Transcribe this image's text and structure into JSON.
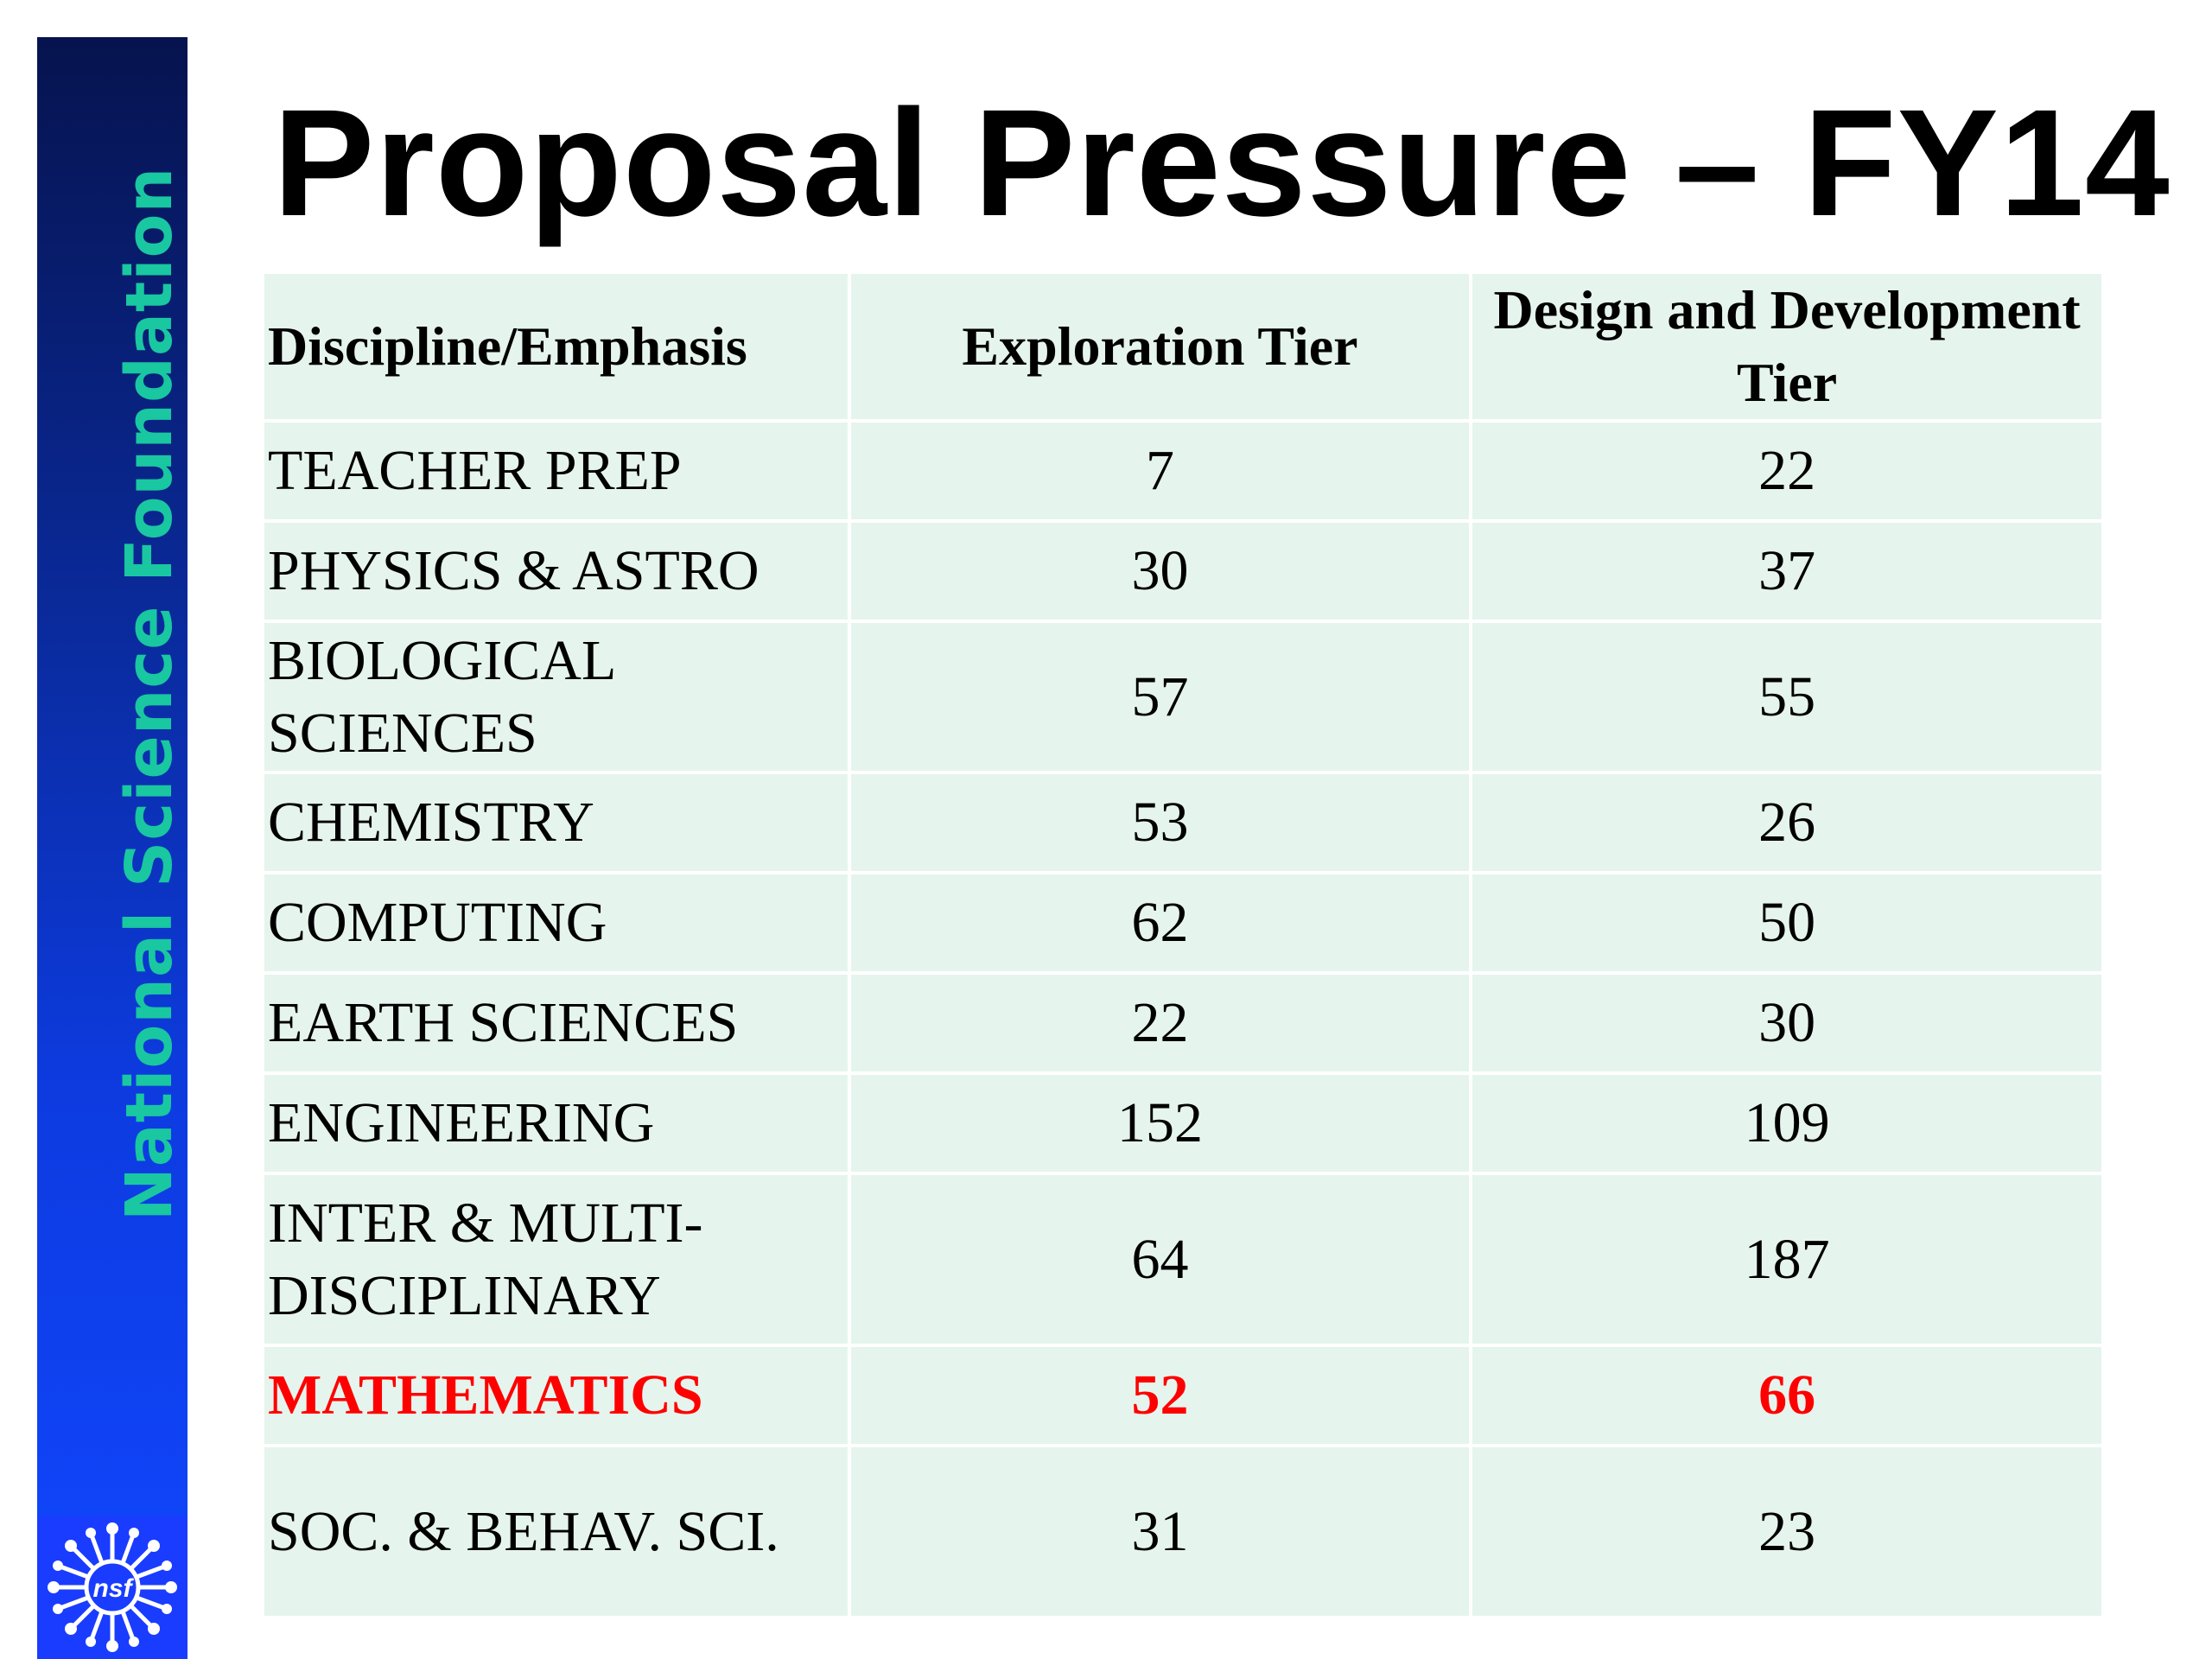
{
  "slide": {
    "title": "Proposal Pressure – FY14",
    "sidebar_text": "National Science Foundation",
    "logo_text": "nsf"
  },
  "table": {
    "headers": [
      "Discipline/Emphasis",
      "Exploration Tier",
      "Design and Development Tier"
    ],
    "rows": [
      {
        "discipline": "TEACHER PREP",
        "exploration": "7",
        "design": "22"
      },
      {
        "discipline": "PHYSICS & ASTRO",
        "exploration": "30",
        "design": "37"
      },
      {
        "discipline": "BIOLOGICAL SCIENCES",
        "exploration": "57",
        "design": "55"
      },
      {
        "discipline": "CHEMISTRY",
        "exploration": "53",
        "design": "26"
      },
      {
        "discipline": "COMPUTING",
        "exploration": "62",
        "design": "50"
      },
      {
        "discipline": "EARTH SCIENCES",
        "exploration": "22",
        "design": "30"
      },
      {
        "discipline": "ENGINEERING",
        "exploration": "152",
        "design": "109"
      },
      {
        "discipline": "INTER & MULTI-DISCIPLINARY",
        "exploration": "64",
        "design": "187"
      },
      {
        "discipline": "MATHEMATICS",
        "exploration": "52",
        "design": "66"
      },
      {
        "discipline": "SOC. & BEHAV. SCI.",
        "exploration": "31",
        "design": "23"
      }
    ]
  },
  "colors": {
    "highlight": "#ff0000",
    "table_fill": "#e6f4ee",
    "sidebar_text": "#19c7a0",
    "sidebar_dark": "#06134e",
    "sidebar_light": "#1147ff"
  }
}
